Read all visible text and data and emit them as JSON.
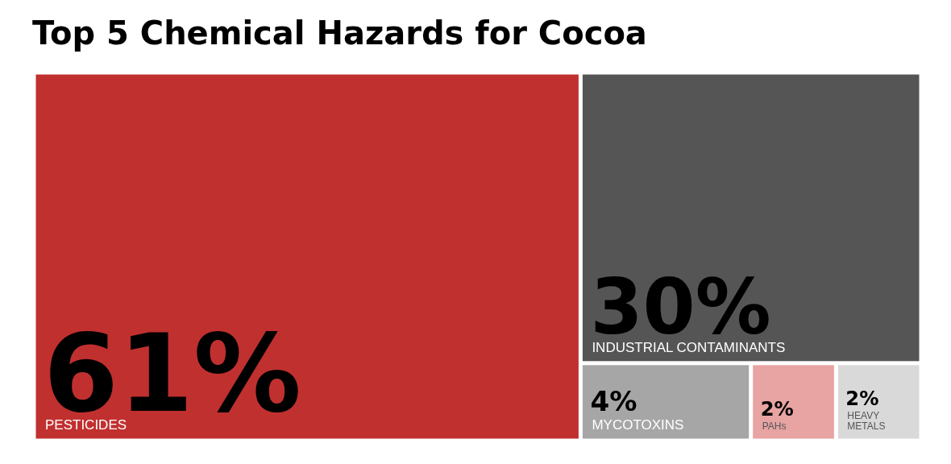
{
  "chart_data": {
    "type": "other",
    "title": "Top 5 Chemical Hazards for Cocoa",
    "categories": [
      "PESTICIDES",
      "INDUSTRIAL CONTAMINANTS",
      "MYCOTOXINS",
      "PAHs",
      "HEAVY METALS"
    ],
    "values": [
      61,
      30,
      4,
      2,
      2
    ],
    "value_labels": [
      "61%",
      "30%",
      "4%",
      "2%",
      "2%"
    ],
    "colors": [
      "#c0302f",
      "#555555",
      "#a6a6a6",
      "#e8a3a3",
      "#d9d9d9"
    ]
  }
}
